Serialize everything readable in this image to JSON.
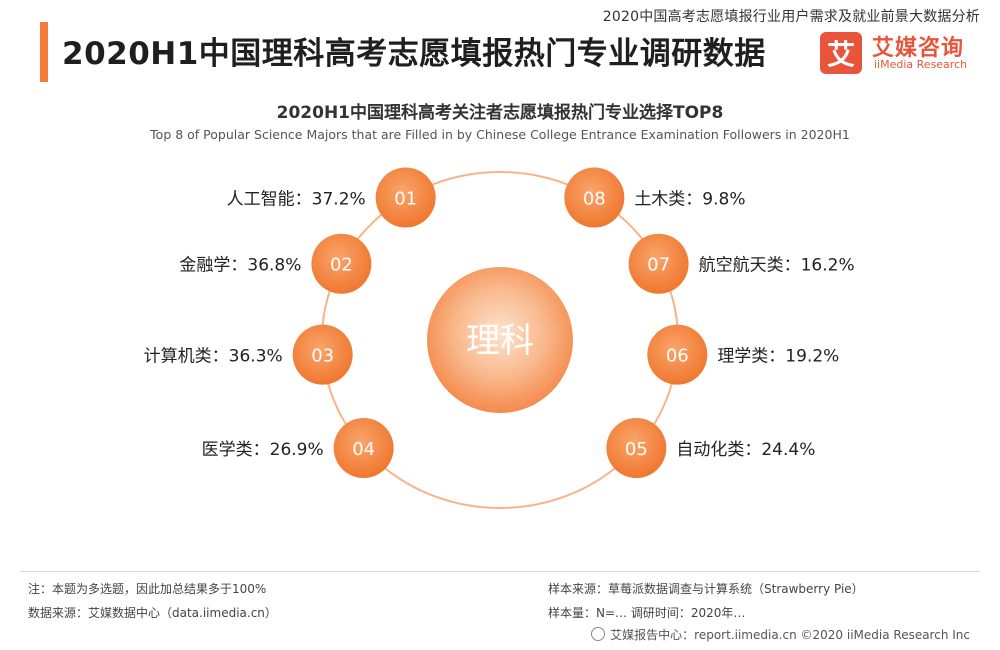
{
  "header": {
    "report_name": "2020中国高考志愿填报行业用户需求及就业前景大数据分析",
    "main_title": "2020H1中国理科高考志愿填报热门专业调研数据",
    "logo_mark": "艾",
    "logo_name": "艾媒咨询",
    "logo_sub": "iiMedia Research"
  },
  "chart_data": {
    "type": "pie",
    "title": "2020H1中国理科高考关注者志愿填报热门专业选择TOP8",
    "subtitle": "Top 8 of Popular Science Majors that are Filled in by Chinese College Entrance Examination Followers in 2020H1",
    "center_label": "理科",
    "unit": "%",
    "items": [
      {
        "rank": "01",
        "name": "人工智能",
        "value": 37.2,
        "label": "人工智能：37.2%"
      },
      {
        "rank": "02",
        "name": "金融学",
        "value": 36.8,
        "label": "金融学：36.8%"
      },
      {
        "rank": "03",
        "name": "计算机类",
        "value": 36.3,
        "label": "计算机类：36.3%"
      },
      {
        "rank": "04",
        "name": "医学类",
        "value": 26.9,
        "label": "医学类：26.9%"
      },
      {
        "rank": "05",
        "name": "自动化类",
        "value": 24.4,
        "label": "自动化类：24.4%"
      },
      {
        "rank": "06",
        "name": "理学类",
        "value": 19.2,
        "label": "理学类：19.2%"
      },
      {
        "rank": "07",
        "name": "航空航天类",
        "value": 16.2,
        "label": "航空航天类：16.2%"
      },
      {
        "rank": "08",
        "name": "土木类",
        "value": 9.8,
        "label": "土木类：9.8%"
      }
    ],
    "colors": {
      "accent": "#f47b3a",
      "ring": "#f6b48a",
      "center_light": "#fbe0cc"
    }
  },
  "footer": {
    "note": "注：本题为多选题，因此加总结果多于100%",
    "data_source": "数据来源：艾媒数据中心（data.iimedia.cn）",
    "sample_source": "样本来源：草莓派数据调查与计算系统（Strawberry Pie）",
    "sample_size": "样本量：N=… 调研时间：2020年…",
    "copyright": "艾媒报告中心：report.iimedia.cn  ©2020  iiMedia Research  Inc"
  }
}
